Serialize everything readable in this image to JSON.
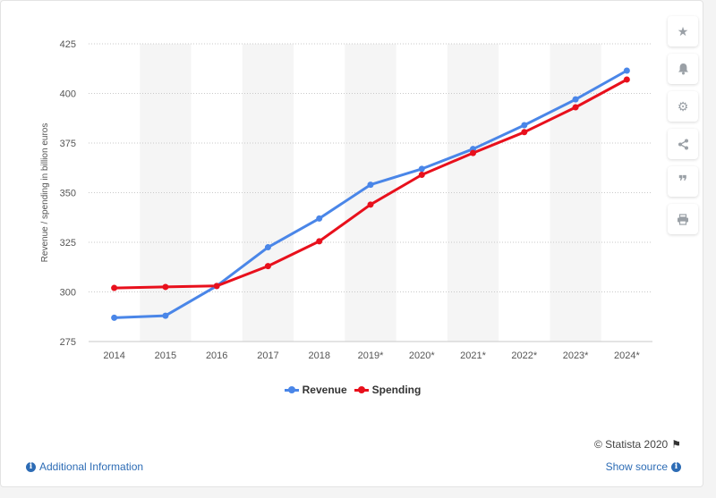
{
  "chart_data": {
    "type": "line",
    "categories": [
      "2014",
      "2015",
      "2016",
      "2017",
      "2018",
      "2019*",
      "2020*",
      "2021*",
      "2022*",
      "2023*",
      "2024*"
    ],
    "series": [
      {
        "name": "Revenue",
        "color": "#4a86e8",
        "values": [
          287,
          288,
          303,
          322.5,
          337,
          354,
          362,
          372,
          384,
          397,
          411.5
        ]
      },
      {
        "name": "Spending",
        "color": "#e8101c",
        "values": [
          302,
          302.5,
          303,
          313,
          325.5,
          344,
          359,
          370,
          380.5,
          393,
          407
        ]
      }
    ],
    "ylabel": "Revenue / spending in billion euros",
    "ylim": [
      275,
      425
    ],
    "yticks": [
      275,
      300,
      325,
      350,
      375,
      400,
      425
    ],
    "grid": true,
    "legend": "bottom"
  },
  "toolbar": {
    "icons": [
      "star-icon",
      "bell-icon",
      "gear-icon",
      "share-icon",
      "quote-icon",
      "print-icon"
    ]
  },
  "footer": {
    "copyright": "© Statista 2020",
    "additional_info": "Additional Information",
    "show_source": "Show source"
  }
}
